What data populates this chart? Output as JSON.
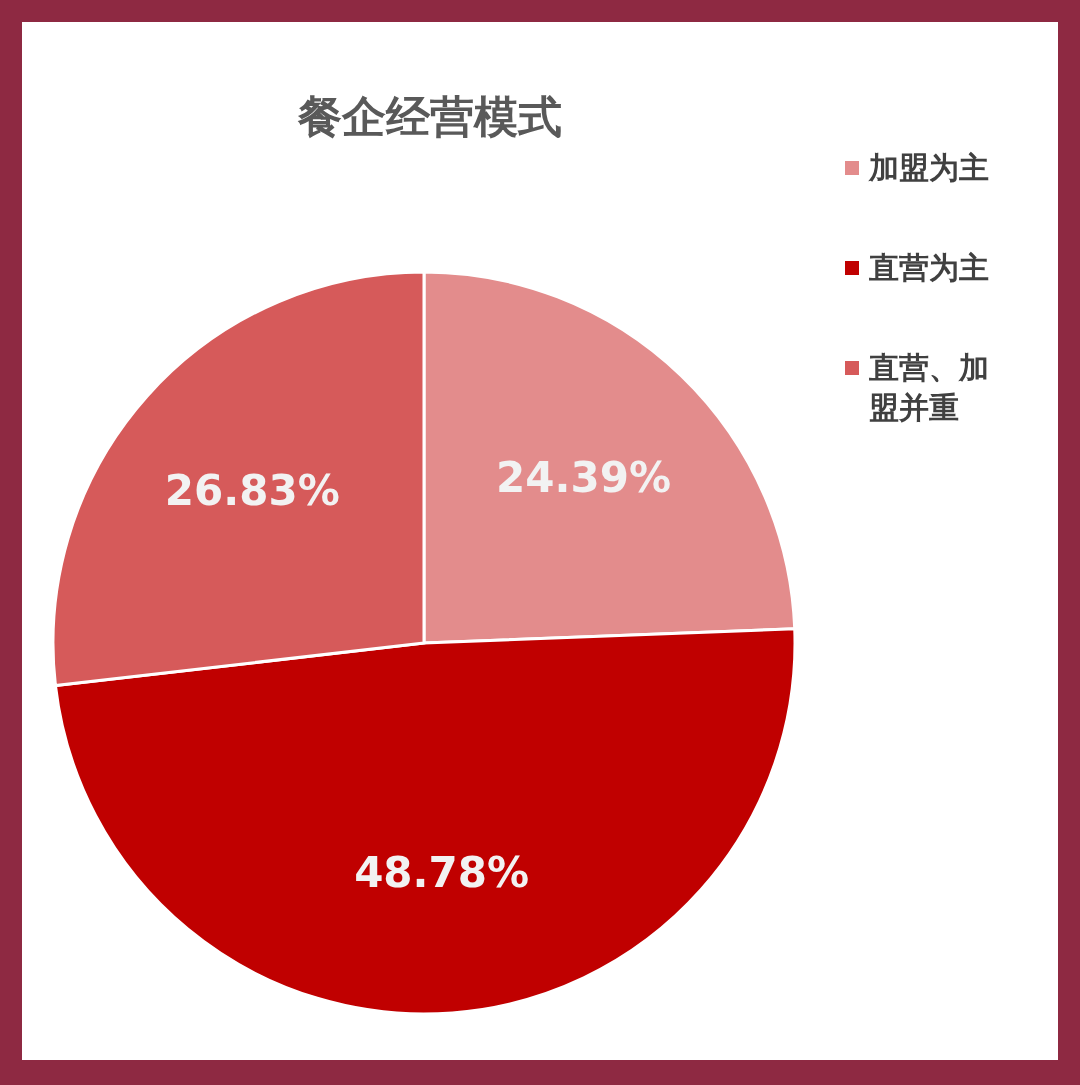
{
  "chart_data": {
    "type": "pie",
    "title": "餐企经营模式",
    "categories": [
      "加盟为主",
      "直营为主",
      "直营、加盟并重"
    ],
    "values": [
      24.39,
      48.78,
      26.83
    ],
    "colors": [
      "#e38c8c",
      "#c00000",
      "#d65a5a"
    ],
    "value_labels": [
      "24.39%",
      "48.78%",
      "26.83%"
    ],
    "legend": "right"
  }
}
